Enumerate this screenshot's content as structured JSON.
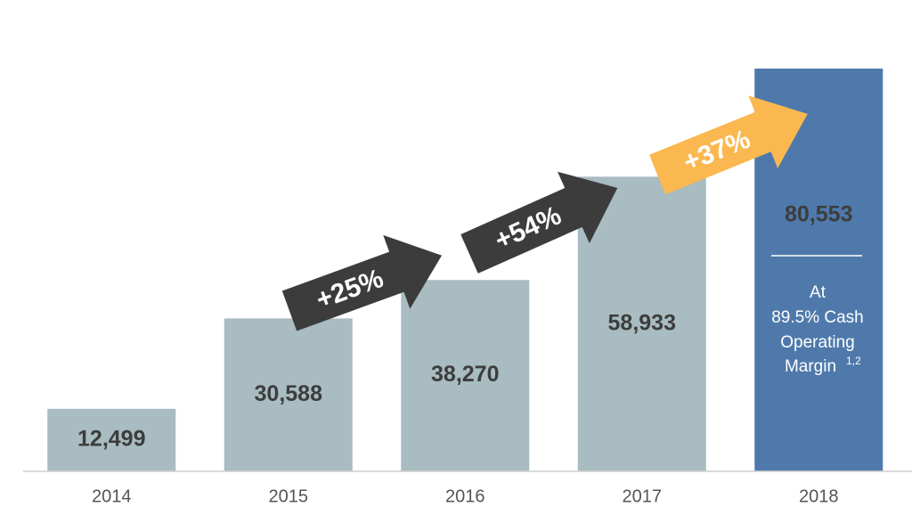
{
  "chart_data": {
    "type": "bar",
    "categories": [
      "2014",
      "2015",
      "2016",
      "2017",
      "2018"
    ],
    "values": [
      12499,
      30588,
      38270,
      58933,
      80553
    ],
    "value_labels": [
      "12,499",
      "30,588",
      "38,270",
      "58,933",
      "80,553"
    ],
    "colors": [
      "#a8bcc1",
      "#a8bcc1",
      "#a8bcc1",
      "#a8bcc1",
      "#4f79ab"
    ],
    "annotations": [
      {
        "text": "+25%",
        "color": "#3c3c3c"
      },
      {
        "text": "+54%",
        "color": "#3c3c3c"
      },
      {
        "text": "+37%",
        "color": "#fbb850"
      }
    ],
    "note": {
      "lines": [
        "At",
        "89.5% Cash",
        "Operating",
        "Margin"
      ],
      "superscript": "1,2"
    }
  }
}
